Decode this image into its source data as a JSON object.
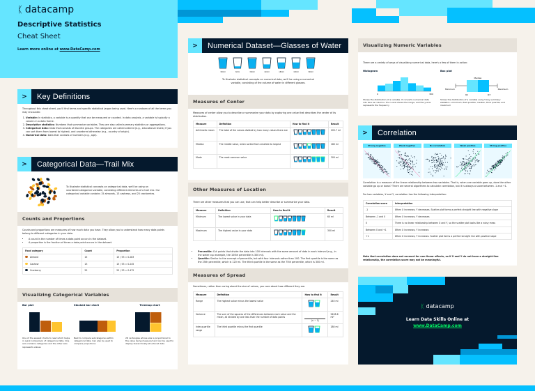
{
  "brand": {
    "logo": "datacamp",
    "title": "Descriptive Statistics",
    "subtitle": "Cheat Sheet",
    "learn_prefix": "Learn more online at ",
    "learn_link": "www.DataCamp.com"
  },
  "colors": {
    "dark": "#05192D",
    "cyan": "#65E5FF",
    "blue": "#05C0FF",
    "deep_blue": "#0096D6",
    "green": "#03EF62",
    "almond": "#BF5E0C",
    "cashew": "#FFC42E",
    "gray_header": "#E7E2DA",
    "background": "#F6F2EB"
  },
  "key_definitions": {
    "title": "Key Definitions",
    "intro": "Throughout this cheat sheet, you'll find terms and specific statistical jargon being used. Here's a rundown of all the terms you may encounter.",
    "items": [
      {
        "term": "Variable:",
        "text": " In statistics, a variable is a quantity that can be measured or counted. In data analysis, a variable is typically a column in a data frame."
      },
      {
        "term": "Descriptive statistics:",
        "text": " Numbers that summarize variables. They are also called summary statistics or aggregations."
      },
      {
        "term": "Categorical data:",
        "text": " Data that consists of discrete groups. The categories are called ordered (e.g., educational levels) if you can sort them from lowest to highest, and unordered otherwise (e.g., country of origin)."
      },
      {
        "term": "Numerical data:",
        "text": " Data that consists of numbers (e.g., age)."
      }
    ]
  },
  "categorical": {
    "title": "Categorical Data—Trail Mix",
    "intro": "To illustrate statistical concepts on categorical data, we'll be using an unordered categorical variable, consisting different elements of a trail mix. Our categorical variable contains 15 almonds, 13 cashews, and 25 cranberries.",
    "counts_title": "Counts and Proportions",
    "counts_intro": "Counts and proportions are measures of how much data you have. They allow you to understand how many data points belong to different categories in your data.",
    "bullets": [
      "A count is the number of times a data point occurs in the dataset.",
      "A proportion is the fraction of times a data point occurs in the dataset."
    ],
    "table": {
      "headers": [
        "Food category",
        "Count",
        "Proportion"
      ],
      "rows": [
        [
          "Almond",
          "15",
          "15 / 53 = 0.283"
        ],
        [
          "Cashew",
          "13",
          "13 / 53 = 0.245"
        ],
        [
          "Cranberry",
          "25",
          "25 / 53 = 0.472"
        ]
      ]
    },
    "viz_title": "Visualizing Categorical Variables",
    "viz": [
      {
        "title": "Bar plot",
        "text": "One of the easiest charts to read which helps in quick comparison of categorical data. One axis contains categories and the other axis represents values"
      },
      {
        "title": "Stacked bar chart",
        "text": "Best to compare subcategories within categorical data. Can also be used to compare proportions"
      },
      {
        "title": "Treemap chart",
        "text": "2D rectangles whose size is proportional to the value being measured and can be used to display hierarchically structured data"
      }
    ]
  },
  "numerical": {
    "title": "Numerical Dataset—Glasses of Water",
    "glasses": [
      "300ml",
      "60ml",
      "300ml",
      "120ml",
      "180ml",
      "180ml",
      "300ml"
    ],
    "glass_values": [
      300,
      60,
      300,
      120,
      180,
      180,
      300
    ],
    "intro": "To illustrate statistical concepts on numerical data, we'll be using a numerical variable, consisting of the volume of water in different glasses."
  },
  "center": {
    "title": "Measures of Center",
    "intro": "Measures of center allow you to describe or summarize your data by capturing one value that describes the center of its distribution.",
    "headers": [
      "Measure",
      "Definition",
      "How to find it",
      "Result"
    ],
    "rows": [
      [
        "Arithmetic mean",
        "The total of the values divided by how many values there are",
        "",
        "205.7 ml"
      ],
      [
        "Median",
        "The middle value, when sorted from smallest to largest",
        "",
        "180 ml"
      ],
      [
        "Mode",
        "The most common value",
        "",
        "300 ml"
      ]
    ]
  },
  "location": {
    "title": "Other Measures of Location",
    "intro": "There are other measures that you can use, that can help better describe or summarize your data.",
    "headers": [
      "Measure",
      "Definition",
      "How to find it",
      "Result"
    ],
    "rows": [
      [
        "Minimum",
        "The lowest value in your data",
        "",
        "60 ml"
      ],
      [
        "Maximum",
        "The highest value in your data",
        "",
        "300 ml"
      ]
    ],
    "notes": [
      {
        "term": "Percentile:",
        "text": " Cut points that divide the data into 100 intervals with the same amount of data in each interval (e.g., in the water cup example, the 100th percentile is 300 ml)."
      },
      {
        "term": "Quartile:",
        "text": " Similar to the concept of percentile, but with four intervals rather than 100. The first quartile is the same as the 25th percentile, which is 120 ml. The third quartile is the same as the 75th percentile, which is 300 ml."
      }
    ]
  },
  "spread": {
    "title": "Measures of Spread",
    "intro": "Sometimes, rather than caring about the size of values, you care about how different they are.",
    "headers": [
      "Measure",
      "Definition",
      "How to find it",
      "Result"
    ],
    "rows": [
      [
        "Range",
        "The highest value minus the lowest value",
        "",
        "240 ml"
      ],
      [
        "Variance",
        "The sum of the squares of the differences between each value and the mean, all divided by one less than the number of data points",
        "(n − 1)",
        "9428.6 ml²"
      ],
      [
        "Inter-quartile range",
        "The third quartile minus the first quartile",
        "",
        "180 ml"
      ]
    ]
  },
  "viz_numeric": {
    "title": "Visualizing Numeric Variables",
    "intro": "There are a variety of ways of visualizing numerical data, here's a few of them in action:",
    "histogram": {
      "title": "Histogram",
      "x_min": "0",
      "x_max": "300",
      "relative_heights": [
        0.42,
        0.55,
        0.75,
        1.0,
        0.58,
        0.42,
        0.27
      ],
      "text": "Shows the distribution of a variable. It converts numerical data into bins as columns. The x-axis shows the range, and the y-axis represents the frequency"
    },
    "boxplot": {
      "title": "Box plot",
      "median": "Median",
      "minimum": "Minimum",
      "maximum": "Maximum",
      "q1": "Q1",
      "q3": "Q3",
      "text": "Shows the distribution of a variable using 5 key summary statistics—minimum, first quartile, median, third quartile, and maximum"
    }
  },
  "correlation": {
    "title": "Correlation",
    "plots": [
      {
        "label": "Strong negative",
        "r": -0.95
      },
      {
        "label": "Weak negative",
        "r": -0.5
      },
      {
        "label": "No correlation",
        "r": 0
      },
      {
        "label": "Weak positive",
        "r": 0.5
      },
      {
        "label": "Strong positive",
        "r": 0.95
      }
    ],
    "intro": "Correlation is a measure of the linear relationship between two variables. That is, when one variable goes up, does the other variable go up or down? There are several algorithms to calculate correlation, but it is always a score between -1 and +1.",
    "intro2": "For two variables, X and Y, correlation has the following interpretation:",
    "headers": [
      "Correlation score",
      "Interpretation"
    ],
    "rows": [
      [
        "-1",
        "When X increases, Y decreases. Scatter plot forms a perfect straight line with negative slope"
      ],
      [
        "Between -1 and 0",
        "When X increases, Y decreases"
      ],
      [
        "0",
        "There is no linear relationship between X and Y, so the scatter plot looks like a noisy mess"
      ],
      [
        "Between 0 and +1",
        "When X increases, Y increases"
      ],
      [
        "+1",
        "When X increases, Y increases. Scatter plot forms a perfect straight line with positive slope"
      ]
    ],
    "note": "Note that correlation does not account for non-linear effects, so if X and Y do not have a straight-line relationship, the correlation score may not be meaningful."
  },
  "promo": {
    "logo": "datacamp",
    "text": "Learn Data Skills Online at",
    "link": "www.DataCamp.com"
  }
}
